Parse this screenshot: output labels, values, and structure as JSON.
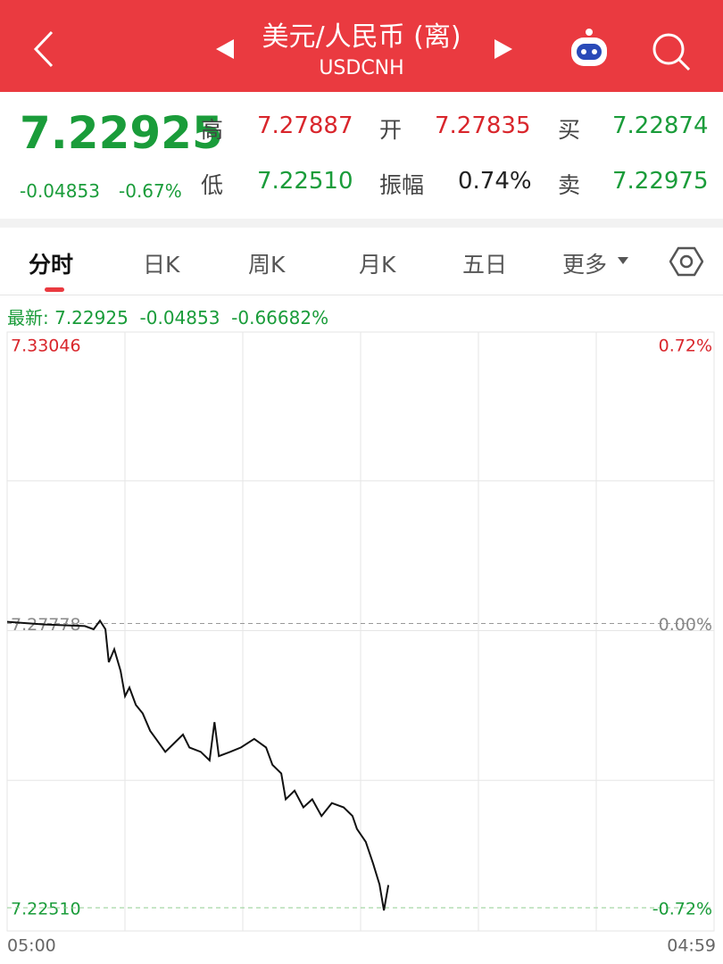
{
  "header": {
    "title": "美元/人民币 (离)",
    "subtitle": "USDCNH"
  },
  "quote": {
    "price": "7.22925",
    "change": "-0.04853",
    "change_pct": "-0.67%",
    "fields": [
      {
        "label": "高",
        "value": "7.27887",
        "color": "#d9262c"
      },
      {
        "label": "开",
        "value": "7.27835",
        "color": "#d9262c"
      },
      {
        "label": "买",
        "value": "7.22874",
        "color": "#1a9c3a"
      },
      {
        "label": "低",
        "value": "7.22510",
        "color": "#1a9c3a"
      },
      {
        "label": "振幅",
        "value": "0.74%",
        "color": "#222222"
      },
      {
        "label": "卖",
        "value": "7.22975",
        "color": "#1a9c3a"
      }
    ]
  },
  "tabs": [
    "分时",
    "日K",
    "周K",
    "月K",
    "五日",
    "更多"
  ],
  "latest": "最新: 7.22925  -0.04853  -0.66682%",
  "chart_data": {
    "type": "line",
    "xlim": [
      0,
      1439
    ],
    "xticks": [
      {
        "value": 0,
        "label": "05:00"
      },
      {
        "value": 1439,
        "label": "04:59"
      }
    ],
    "ylim": [
      7.2251,
      7.33046
    ],
    "yticks": [
      {
        "value": 7.2251,
        "label": "7.22510"
      },
      7.27778,
      7.33046
    ],
    "y2lim": [
      -0.72,
      0.72
    ],
    "y2ticks": [
      {
        "value": -0.72,
        "label": "-0.72%"
      },
      {
        "value": 0,
        "label": "0.00%"
      },
      {
        "value": 0.72,
        "label": "0.72%"
      }
    ],
    "series": [
      {
        "color": "#111111",
        "x": [
          0,
          76,
          158,
          176,
          189,
          200,
          207,
          218,
          231,
          240,
          249,
          262,
          276,
          291,
          303,
          322,
          340,
          358,
          371,
          394,
          412,
          422,
          431,
          454,
          476,
          503,
          527,
          540,
          558,
          567,
          585,
          603,
          621,
          640,
          661,
          685,
          703,
          712,
          730,
          745,
          758,
          767,
          776
        ],
        "values": [
          7.2781,
          7.2776,
          7.2773,
          7.2767,
          7.2783,
          7.2767,
          7.2706,
          7.273,
          7.269,
          7.2643,
          7.2659,
          7.2627,
          7.2611,
          7.2579,
          7.2564,
          7.254,
          7.2556,
          7.2572,
          7.2548,
          7.254,
          7.2524,
          7.2595,
          7.2532,
          7.254,
          7.2548,
          7.2564,
          7.2548,
          7.2516,
          7.25,
          7.2452,
          7.2468,
          7.2437,
          7.2452,
          7.2421,
          7.2445,
          7.2437,
          7.2421,
          7.2397,
          7.2373,
          7.2333,
          7.2294,
          7.2246,
          7.2293
        ]
      }
    ]
  }
}
